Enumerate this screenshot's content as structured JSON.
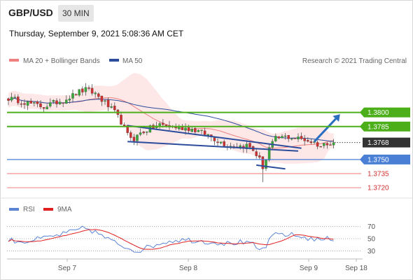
{
  "header": {
    "symbol": "GBP/USD",
    "timeframe": "30 MIN",
    "datetime": "Thursday, September 9, 2021 5:08:36 AM CET"
  },
  "legend": {
    "ma20_label": "MA 20 + Bollinger Bands",
    "ma50_label": "MA 50",
    "copyright": "Research © 2021 Trading Central",
    "rsi_label": "RSI",
    "ma9_label": "9MA"
  },
  "colors": {
    "ma20": "#f08080",
    "ma50": "#2c4c9c",
    "bollinger_fill": "#fde3e3",
    "up_candle": "#38a838",
    "down_candle": "#d03030",
    "resistance": "#4caf1a",
    "support": "#4a7fd6",
    "weak_support": "#f06060",
    "current": "#333333",
    "trendline": "#2c4c9c",
    "arrow": "#2a6fc0",
    "rsi": "#5b84d6",
    "ma9": "#e02020"
  },
  "chart_data": [
    {
      "type": "candlestick",
      "title": "",
      "ylim": [
        1.3712,
        1.3845
      ],
      "x_ticks": [
        "Sep 7",
        "Sep 8",
        "Sep 9",
        "Sep 18"
      ],
      "levels": [
        {
          "value": 1.38,
          "label": "1.3800",
          "kind": "resistance"
        },
        {
          "value": 1.3785,
          "label": "1.3785",
          "kind": "resistance"
        },
        {
          "value": 1.3768,
          "label": "1.3768",
          "kind": "current"
        },
        {
          "value": 1.375,
          "label": "1.3750",
          "kind": "support"
        },
        {
          "value": 1.3735,
          "label": "1.3735",
          "kind": "weak_support"
        },
        {
          "value": 1.372,
          "label": "1.3720",
          "kind": "weak_support"
        }
      ],
      "keypoints": [
        [
          0,
          1.3815
        ],
        [
          4,
          1.3812
        ],
        [
          8,
          1.3808
        ],
        [
          11,
          1.3806
        ],
        [
          14,
          1.381
        ],
        [
          17,
          1.3813
        ],
        [
          20,
          1.3818
        ],
        [
          22,
          1.3822
        ],
        [
          24,
          1.3824
        ],
        [
          27,
          1.382
        ],
        [
          30,
          1.381
        ],
        [
          33,
          1.38
        ],
        [
          35,
          1.379
        ],
        [
          37,
          1.3776
        ],
        [
          39,
          1.3772
        ],
        [
          41,
          1.3778
        ],
        [
          44,
          1.3783
        ],
        [
          47,
          1.3787
        ],
        [
          50,
          1.3785
        ],
        [
          53,
          1.3784
        ],
        [
          56,
          1.3783
        ],
        [
          59,
          1.378
        ],
        [
          62,
          1.3776
        ],
        [
          65,
          1.377
        ],
        [
          68,
          1.3765
        ],
        [
          71,
          1.3764
        ],
        [
          74,
          1.3765
        ],
        [
          76,
          1.376
        ],
        [
          78,
          1.375
        ],
        [
          79,
          1.3742
        ],
        [
          80,
          1.375
        ],
        [
          81,
          1.3762
        ],
        [
          83,
          1.3772
        ],
        [
          86,
          1.3774
        ],
        [
          89,
          1.3773
        ],
        [
          92,
          1.3771
        ],
        [
          95,
          1.3768
        ],
        [
          97,
          1.3764
        ],
        [
          99,
          1.3768
        ],
        [
          101,
          1.3769
        ]
      ],
      "trendlines": [
        [
          [
            37,
            1.3769
          ],
          [
            90,
            1.3759
          ]
        ],
        [
          [
            37,
            1.3786
          ],
          [
            91,
            1.3762
          ]
        ],
        [
          [
            77,
            1.3744
          ],
          [
            86,
            1.374
          ]
        ]
      ],
      "forecast_arrow": [
        [
          95,
          1.3769
        ],
        [
          103,
          1.3798
        ]
      ]
    },
    {
      "type": "line",
      "title": "",
      "ylim": [
        20,
        80
      ],
      "y_ticks": [
        70,
        50,
        30
      ],
      "rsi_keypoints": [
        [
          0,
          48
        ],
        [
          5,
          45
        ],
        [
          10,
          50
        ],
        [
          15,
          55
        ],
        [
          20,
          62
        ],
        [
          24,
          68
        ],
        [
          28,
          58
        ],
        [
          32,
          46
        ],
        [
          36,
          37
        ],
        [
          40,
          30
        ],
        [
          44,
          37
        ],
        [
          48,
          44
        ],
        [
          52,
          48
        ],
        [
          56,
          48
        ],
        [
          60,
          46
        ],
        [
          64,
          44
        ],
        [
          68,
          42
        ],
        [
          72,
          44
        ],
        [
          76,
          40
        ],
        [
          78,
          30
        ],
        [
          80,
          38
        ],
        [
          82,
          54
        ],
        [
          84,
          58
        ],
        [
          88,
          56
        ],
        [
          92,
          52
        ],
        [
          96,
          48
        ],
        [
          100,
          50
        ]
      ]
    }
  ]
}
